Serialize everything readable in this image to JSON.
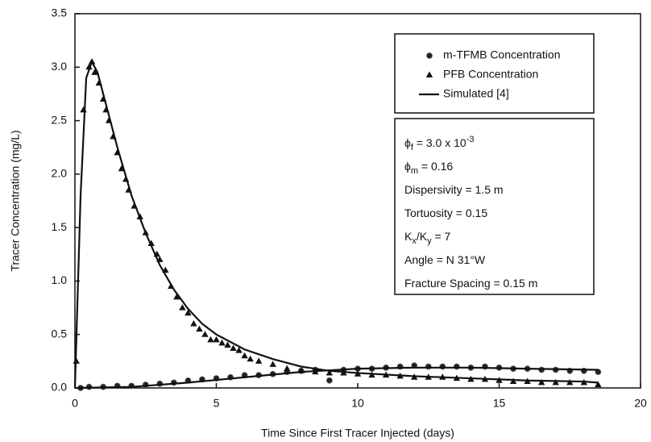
{
  "chart_data": {
    "type": "scatter",
    "x_label": "Time Since First Tracer Injected (days)",
    "y_label": "Tracer Concentration (mg/L)",
    "xlim": [
      0,
      20
    ],
    "ylim": [
      0,
      3.5
    ],
    "xticks": [
      0,
      5,
      10,
      15,
      20
    ],
    "yticks": [
      {
        "value": 0,
        "label": "0.0"
      },
      0.5,
      {
        "value": 1,
        "label": "1.0"
      },
      1.5,
      {
        "value": 2,
        "label": "2.0"
      },
      2.5,
      {
        "value": 3,
        "label": "3.0"
      },
      3.5
    ],
    "legend": "upper right",
    "series": [
      {
        "name": "m-TFMB Concentration",
        "marker": "circle",
        "color": "#222222",
        "x": [
          0.2,
          0.5,
          1,
          1.5,
          2,
          2.5,
          3,
          3.5,
          4,
          4.5,
          5,
          5.5,
          6,
          6.5,
          7,
          7.5,
          8,
          8.5,
          9,
          9.5,
          10,
          10.5,
          11,
          11.5,
          12,
          12.5,
          13,
          13.5,
          14,
          14.5,
          15,
          15.5,
          16,
          16.5,
          17,
          17.5,
          18,
          18.5
        ],
        "values": [
          0.0,
          0.01,
          0.01,
          0.02,
          0.02,
          0.03,
          0.04,
          0.05,
          0.07,
          0.08,
          0.09,
          0.1,
          0.12,
          0.12,
          0.13,
          0.15,
          0.16,
          0.17,
          0.07,
          0.17,
          0.18,
          0.18,
          0.19,
          0.2,
          0.21,
          0.2,
          0.2,
          0.2,
          0.19,
          0.2,
          0.19,
          0.18,
          0.18,
          0.17,
          0.17,
          0.16,
          0.16,
          0.15
        ]
      },
      {
        "name": "PFB Concentration",
        "marker": "triangle",
        "color": "#111111",
        "x": [
          0.05,
          0.3,
          0.5,
          0.6,
          0.7,
          0.85,
          1.0,
          1.1,
          1.2,
          1.35,
          1.5,
          1.65,
          1.8,
          1.9,
          2.1,
          2.3,
          2.5,
          2.7,
          2.9,
          3.0,
          3.2,
          3.4,
          3.6,
          3.8,
          4.0,
          4.2,
          4.4,
          4.6,
          4.8,
          5.0,
          5.2,
          5.4,
          5.6,
          5.8,
          6.0,
          6.2,
          6.5,
          7.0,
          7.5,
          8,
          8.5,
          9,
          9.5,
          10,
          10.5,
          11,
          11.5,
          12,
          12.5,
          13,
          13.5,
          14,
          14.5,
          15,
          15.5,
          16,
          16.5,
          17,
          17.5,
          18,
          18.5
        ],
        "values": [
          0.25,
          2.6,
          3.0,
          3.05,
          2.95,
          2.85,
          2.7,
          2.6,
          2.5,
          2.35,
          2.2,
          2.05,
          1.95,
          1.85,
          1.7,
          1.6,
          1.45,
          1.35,
          1.25,
          1.2,
          1.1,
          0.95,
          0.85,
          0.75,
          0.7,
          0.6,
          0.55,
          0.5,
          0.45,
          0.45,
          0.42,
          0.4,
          0.37,
          0.35,
          0.3,
          0.27,
          0.25,
          0.22,
          0.18,
          0.16,
          0.15,
          0.14,
          0.14,
          0.13,
          0.12,
          0.12,
          0.11,
          0.1,
          0.1,
          0.1,
          0.09,
          0.08,
          0.08,
          0.07,
          0.06,
          0.06,
          0.05,
          0.05,
          0.05,
          0.05,
          0.03
        ]
      },
      {
        "name": "Simulated [4]",
        "marker": "line",
        "color": "#111111",
        "x": [
          0,
          0.2,
          0.4,
          0.6,
          0.8,
          1,
          1.5,
          2,
          2.5,
          3,
          3.5,
          4,
          4.5,
          5,
          6,
          7,
          8,
          9,
          10,
          12,
          14,
          16,
          18,
          18.5,
          null,
          0,
          2,
          4,
          6,
          8,
          10,
          12,
          14,
          16,
          18.5
        ],
        "values": [
          0,
          1.8,
          2.9,
          3.05,
          2.95,
          2.75,
          2.25,
          1.8,
          1.45,
          1.15,
          0.92,
          0.74,
          0.6,
          0.5,
          0.36,
          0.27,
          0.2,
          0.16,
          0.14,
          0.11,
          0.09,
          0.07,
          0.06,
          0.05,
          null,
          0,
          0.01,
          0.05,
          0.1,
          0.15,
          0.18,
          0.19,
          0.19,
          0.18,
          0.17
        ]
      }
    ],
    "annotations": [
      [
        "ϕ",
        {
          "sub": "f"
        },
        " = 3.0 x 10",
        {
          "sup": "-3"
        }
      ],
      [
        "ϕ",
        {
          "sub": "m"
        },
        " = 0.16"
      ],
      [
        "Dispersivity = 1.5 m"
      ],
      [
        "Tortuosity = 0.15"
      ],
      [
        "K",
        {
          "sub": "x"
        },
        "/K",
        {
          "sub": "y"
        },
        " = 7"
      ],
      [
        "Angle = N 31°W"
      ],
      [
        "Fracture Spacing = 0.15 m"
      ]
    ]
  }
}
